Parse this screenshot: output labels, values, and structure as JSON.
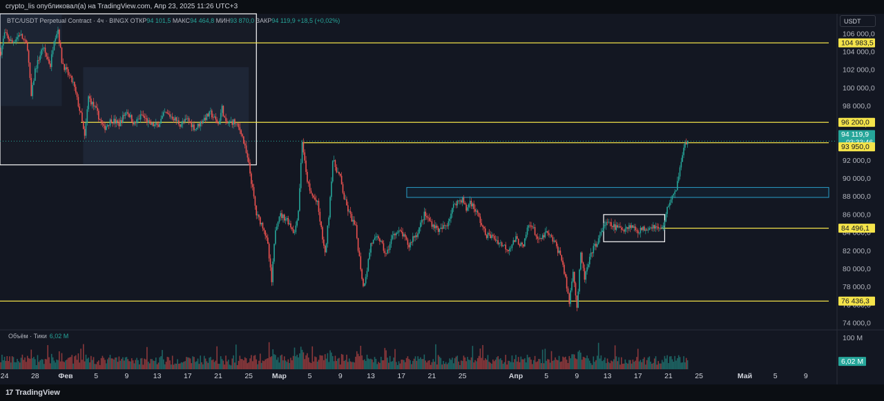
{
  "header": {
    "text": "crypto_lis опубликовал(а) на TradingView.com, Апр 23, 2025 11:26 UTC+3"
  },
  "legend": {
    "symbol": "BTC/USDT Perpetual Contract · 4ч · BINGX",
    "open_label": "ОТКР",
    "open": "94 101,5",
    "high_label": "МАКС",
    "high": "94 464,8",
    "low_label": "МИН",
    "low": "93 870,0",
    "close_label": "ЗАКР",
    "close": "94 119,9",
    "change": "+18,5 (+0,02%)"
  },
  "currency": "USDT",
  "volume_legend": {
    "label": "Объём · Тики",
    "value": "6,02 M"
  },
  "footer": {
    "brand": "TradingView",
    "logo_mark": "17"
  },
  "colors": {
    "up": "#26a69a",
    "down": "#ef5350",
    "level": "#f5e44a",
    "background": "#131722",
    "zone": "#2a9fc9"
  },
  "chart_data": {
    "type": "candlestick",
    "price_axis_ticks": [
      "106 000,0",
      "104 000,0",
      "102 000,0",
      "100 000,0",
      "98 000,0",
      "96 000,0",
      "94 000,0",
      "92 000,0",
      "90 000,0",
      "88 000,0",
      "86 000,0",
      "84 000,0",
      "82 000,0",
      "80 000,0",
      "78 000,0",
      "76 000,0",
      "74 000,0"
    ],
    "price_axis_values": [
      106000,
      104000,
      102000,
      100000,
      98000,
      96000,
      94000,
      92000,
      90000,
      88000,
      86000,
      84000,
      82000,
      80000,
      78000,
      76000,
      74000
    ],
    "ylim": [
      73400,
      108200
    ],
    "time_axis": [
      {
        "label": "24",
        "day": -8,
        "bold": false
      },
      {
        "label": "28",
        "day": -4,
        "bold": false
      },
      {
        "label": "Фев",
        "day": 0,
        "bold": true
      },
      {
        "label": "5",
        "day": 4,
        "bold": false
      },
      {
        "label": "9",
        "day": 8,
        "bold": false
      },
      {
        "label": "13",
        "day": 12,
        "bold": false
      },
      {
        "label": "17",
        "day": 16,
        "bold": false
      },
      {
        "label": "21",
        "day": 20,
        "bold": false
      },
      {
        "label": "25",
        "day": 24,
        "bold": false
      },
      {
        "label": "Мар",
        "day": 28,
        "bold": true
      },
      {
        "label": "5",
        "day": 32,
        "bold": false
      },
      {
        "label": "9",
        "day": 36,
        "bold": false
      },
      {
        "label": "13",
        "day": 40,
        "bold": false
      },
      {
        "label": "17",
        "day": 44,
        "bold": false
      },
      {
        "label": "21",
        "day": 48,
        "bold": false
      },
      {
        "label": "25",
        "day": 52,
        "bold": false
      },
      {
        "label": "Апр",
        "day": 59,
        "bold": true
      },
      {
        "label": "5",
        "day": 63,
        "bold": false
      },
      {
        "label": "9",
        "day": 67,
        "bold": false
      },
      {
        "label": "13",
        "day": 71,
        "bold": false
      },
      {
        "label": "17",
        "day": 75,
        "bold": false
      },
      {
        "label": "21",
        "day": 79,
        "bold": false
      },
      {
        "label": "25",
        "day": 83,
        "bold": false
      },
      {
        "label": "Май",
        "day": 89,
        "bold": true
      },
      {
        "label": "5",
        "day": 93,
        "bold": false
      },
      {
        "label": "9",
        "day": 97,
        "bold": false
      }
    ],
    "price_path": [
      [
        -8.5,
        104000
      ],
      [
        -8,
        106000
      ],
      [
        -7,
        105000
      ],
      [
        -6,
        106000
      ],
      [
        -5,
        104500
      ],
      [
        -4.5,
        99000
      ],
      [
        -4,
        102000
      ],
      [
        -3,
        104500
      ],
      [
        -2,
        102500
      ],
      [
        -1.5,
        105500
      ],
      [
        -1,
        106500
      ],
      [
        -0.5,
        103000
      ],
      [
        0,
        102000
      ],
      [
        1,
        100500
      ],
      [
        2,
        97000
      ],
      [
        2.5,
        94500
      ],
      [
        3,
        99000
      ],
      [
        4,
        97500
      ],
      [
        5,
        95500
      ],
      [
        6,
        96500
      ],
      [
        7,
        96000
      ],
      [
        8,
        97500
      ],
      [
        9,
        96000
      ],
      [
        10,
        97000
      ],
      [
        11,
        96000
      ],
      [
        12,
        95800
      ],
      [
        13,
        97200
      ],
      [
        14,
        96800
      ],
      [
        15,
        96000
      ],
      [
        16,
        96500
      ],
      [
        17,
        95500
      ],
      [
        18,
        96500
      ],
      [
        19,
        97200
      ],
      [
        20,
        96000
      ],
      [
        20.5,
        97800
      ],
      [
        21,
        96000
      ],
      [
        22,
        96300
      ],
      [
        23,
        95200
      ],
      [
        24,
        91500
      ],
      [
        25,
        86000
      ],
      [
        26,
        84500
      ],
      [
        26.5,
        82500
      ],
      [
        27,
        78500
      ],
      [
        27.5,
        84500
      ],
      [
        28,
        86000
      ],
      [
        29,
        85500
      ],
      [
        30,
        84000
      ],
      [
        30.5,
        86500
      ],
      [
        31,
        94200
      ],
      [
        31.5,
        90500
      ],
      [
        32,
        88500
      ],
      [
        33,
        87200
      ],
      [
        34,
        81500
      ],
      [
        34.5,
        86000
      ],
      [
        35,
        92000
      ],
      [
        36,
        90000
      ],
      [
        36.5,
        87800
      ],
      [
        37,
        86500
      ],
      [
        38,
        84500
      ],
      [
        39,
        78000
      ],
      [
        39.5,
        80000
      ],
      [
        40,
        82800
      ],
      [
        41,
        83500
      ],
      [
        42,
        81500
      ],
      [
        43,
        84000
      ],
      [
        44,
        84000
      ],
      [
        45,
        82500
      ],
      [
        45.5,
        83500
      ],
      [
        46,
        83800
      ],
      [
        47,
        86000
      ],
      [
        48,
        85000
      ],
      [
        49,
        84200
      ],
      [
        50,
        85000
      ],
      [
        51,
        87300
      ],
      [
        52,
        87700
      ],
      [
        52.5,
        86500
      ],
      [
        53,
        87500
      ],
      [
        54,
        86000
      ],
      [
        55,
        83800
      ],
      [
        56,
        83500
      ],
      [
        57,
        82800
      ],
      [
        58,
        82200
      ],
      [
        59,
        83300
      ],
      [
        60,
        82300
      ],
      [
        60.5,
        84500
      ],
      [
        61,
        85000
      ],
      [
        62,
        83000
      ],
      [
        63,
        84000
      ],
      [
        64,
        83000
      ],
      [
        65,
        81200
      ],
      [
        65.5,
        78800
      ],
      [
        66,
        76300
      ],
      [
        66.5,
        80000
      ],
      [
        67,
        75700
      ],
      [
        67.5,
        81500
      ],
      [
        68,
        79000
      ],
      [
        69,
        82000
      ],
      [
        70,
        83500
      ],
      [
        70.5,
        84800
      ],
      [
        71,
        85000
      ],
      [
        72,
        84600
      ],
      [
        73,
        84400
      ],
      [
        74,
        84800
      ],
      [
        75,
        84200
      ],
      [
        76,
        84500
      ],
      [
        77,
        84800
      ],
      [
        78,
        84300
      ],
      [
        78.5,
        85300
      ],
      [
        79,
        87200
      ],
      [
        79.5,
        88000
      ],
      [
        80,
        88500
      ],
      [
        80.5,
        91500
      ],
      [
        81,
        93500
      ],
      [
        81.5,
        94120
      ]
    ],
    "levels": [
      {
        "value": 104983.5,
        "label": "104 983,5",
        "color": "#f5e44a",
        "from_day": -9,
        "to_day": 100
      },
      {
        "value": 96200,
        "label": "96 200,0",
        "color": "#f5e44a",
        "from_day": 2,
        "to_day": 100
      },
      {
        "value": 94119.9,
        "label": "94 119,9",
        "sublabel": "03:33:46",
        "color": "#26a69a",
        "dotted": true
      },
      {
        "value": 93950,
        "label": "93 950,0",
        "color": "#f5e44a",
        "from_day": 31,
        "to_day": 100
      },
      {
        "value": 84496.1,
        "label": "84 496,1",
        "color": "#f5e44a",
        "from_day": 78,
        "to_day": 100
      },
      {
        "value": 76436.3,
        "label": "76 436,3",
        "color": "#f5e44a",
        "from_day": -9,
        "to_day": 100
      }
    ],
    "zones": [
      {
        "type": "box",
        "from_day": -9,
        "to_day": 25,
        "top": 108200,
        "bottom": 91500,
        "color": "#ffffff"
      },
      {
        "type": "box",
        "from_day": 70.5,
        "to_day": 78.5,
        "top": 86000,
        "bottom": 83000,
        "color": "#ffffff"
      },
      {
        "type": "range",
        "from_day": 44.7,
        "to_day": 100,
        "top": 89000,
        "bottom": 87900,
        "color": "#2a9fc9"
      }
    ],
    "volume_axis_tick": "100 M",
    "volume_axis_value": 100,
    "volume_current": "6,02 M",
    "volume_max": 125
  }
}
